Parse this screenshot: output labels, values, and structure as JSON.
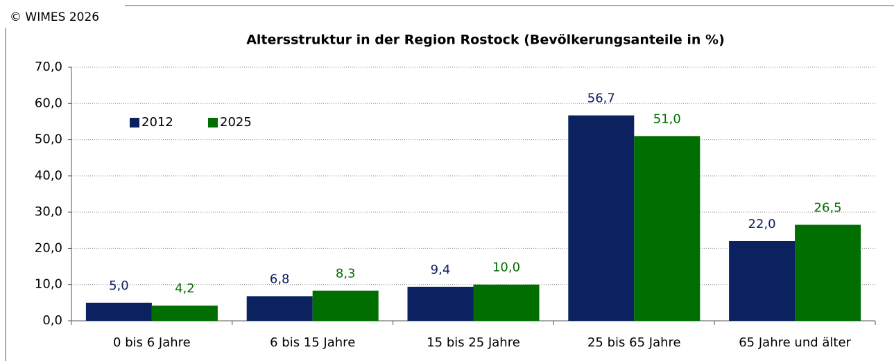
{
  "chart_data": {
    "type": "bar",
    "copyright": "© WIMES 2026",
    "title": "Altersstruktur in der Region Rostock (Bevölkerungsanteile in %)",
    "categories": [
      "0 bis 6 Jahre",
      "6 bis 15 Jahre",
      "15 bis 25 Jahre",
      "25 bis 65 Jahre",
      "65 Jahre und älter"
    ],
    "series": [
      {
        "name": "2012",
        "color": "#0b2160",
        "values": [
          5.0,
          6.8,
          9.4,
          56.7,
          22.0
        ],
        "value_labels": [
          "5,0",
          "6,8",
          "9,4",
          "56,7",
          "22,0"
        ]
      },
      {
        "name": "2025",
        "color": "#006e00",
        "values": [
          4.2,
          8.3,
          10.0,
          51.0,
          26.5
        ],
        "value_labels": [
          "4,2",
          "8,3",
          "10,0",
          "51,0",
          "26,5"
        ]
      }
    ],
    "ylim": [
      0,
      70
    ],
    "yticks": [
      {
        "value": 0,
        "label": "0,0"
      },
      {
        "value": 10,
        "label": "10,0"
      },
      {
        "value": 20,
        "label": "20,0"
      },
      {
        "value": 30,
        "label": "30,0"
      },
      {
        "value": 40,
        "label": "40,0"
      },
      {
        "value": 50,
        "label": "50,0"
      },
      {
        "value": 60,
        "label": "60,0"
      },
      {
        "value": 70,
        "label": "70,0"
      }
    ],
    "grid": true,
    "legend": "upper left"
  }
}
